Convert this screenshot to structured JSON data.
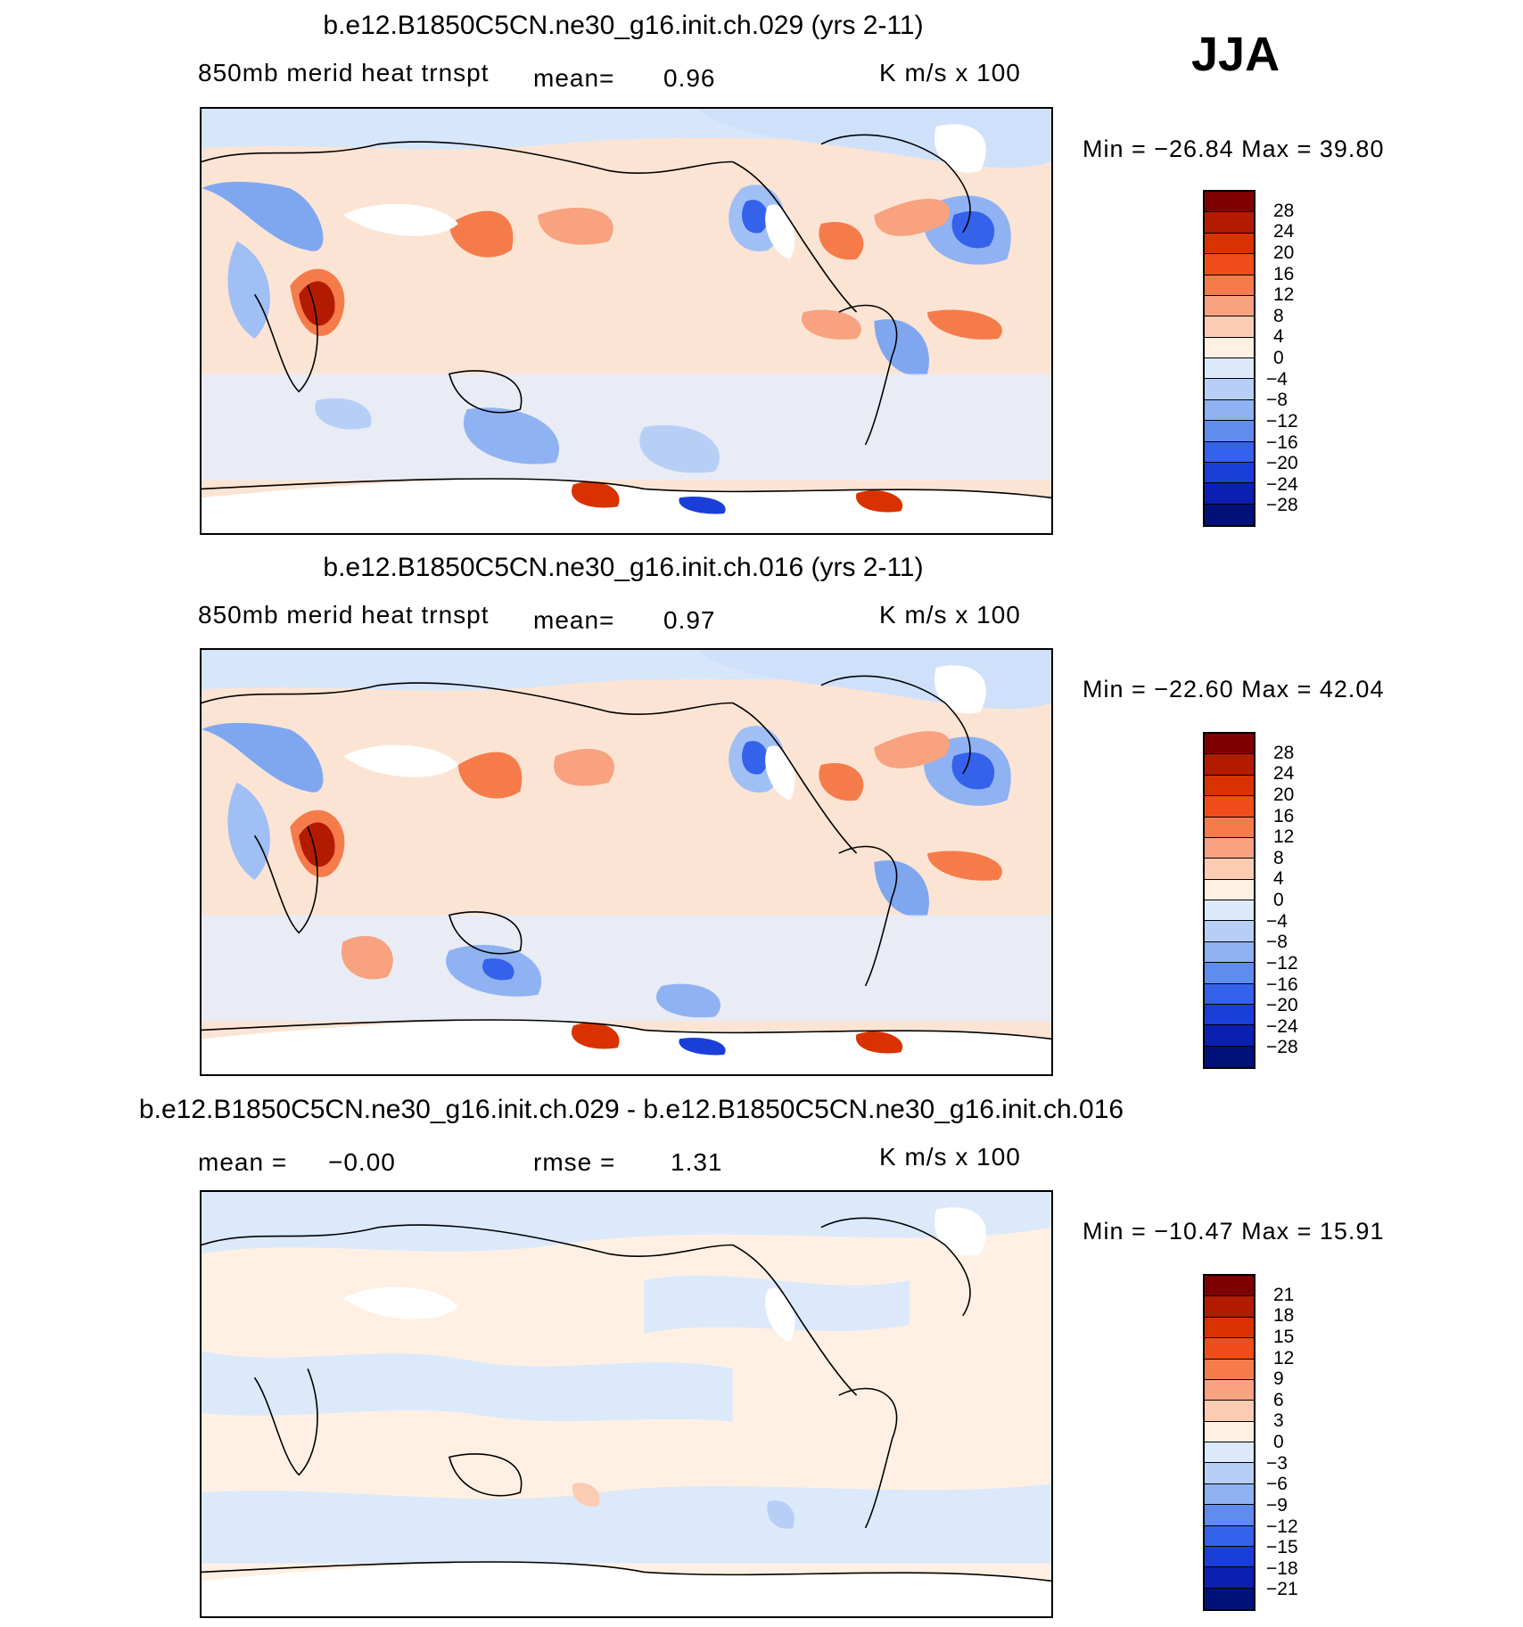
{
  "season": "JJA",
  "panels": [
    {
      "title": "b.e12.B1850C5CN.ne30_g16.init.ch.029 (yrs 2-11)",
      "variable": "850mb  merid  heat  trnspt",
      "mean_label": "mean=",
      "mean_value": "0.96",
      "units": "K  m/s  x  100",
      "min_max": "Min  =  −26.84  Max  =    39.80",
      "colorbar_labels": [
        "28",
        "24",
        "20",
        "16",
        "12",
        "8",
        "4",
        "0",
        "−4",
        "−8",
        "−12",
        "−16",
        "−20",
        "−24",
        "−28"
      ]
    },
    {
      "title": "b.e12.B1850C5CN.ne30_g16.init.ch.016 (yrs 2-11)",
      "variable": "850mb  merid  heat  trnspt",
      "mean_label": "mean=",
      "mean_value": "0.97",
      "units": "K  m/s  x  100",
      "min_max": "Min  =  −22.60  Max  =    42.04",
      "colorbar_labels": [
        "28",
        "24",
        "20",
        "16",
        "12",
        "8",
        "4",
        "0",
        "−4",
        "−8",
        "−12",
        "−16",
        "−20",
        "−24",
        "−28"
      ]
    },
    {
      "title": "b.e12.B1850C5CN.ne30_g16.init.ch.029 - b.e12.B1850C5CN.ne30_g16.init.ch.016",
      "mean_label": "mean  =",
      "mean_value": "−0.00",
      "rmse_label": "rmse  =",
      "rmse_value": "1.31",
      "units": "K  m/s  x  100",
      "min_max": "Min  =  −10.47  Max  =    15.91",
      "colorbar_labels": [
        "21",
        "18",
        "15",
        "12",
        "9",
        "6",
        "3",
        "0",
        "−3",
        "−6",
        "−9",
        "−12",
        "−15",
        "−18",
        "−21"
      ]
    }
  ],
  "colorbar_colors": [
    "#7f0000",
    "#b31b00",
    "#d93200",
    "#f04d1a",
    "#f57c4a",
    "#f8a27f",
    "#fcccb2",
    "#fff0e3",
    "#dbe9fb",
    "#b7cff7",
    "#8fb2f2",
    "#5f8cee",
    "#3462ea",
    "#1a3ed8",
    "#0b1fb0",
    "#00127a"
  ]
}
